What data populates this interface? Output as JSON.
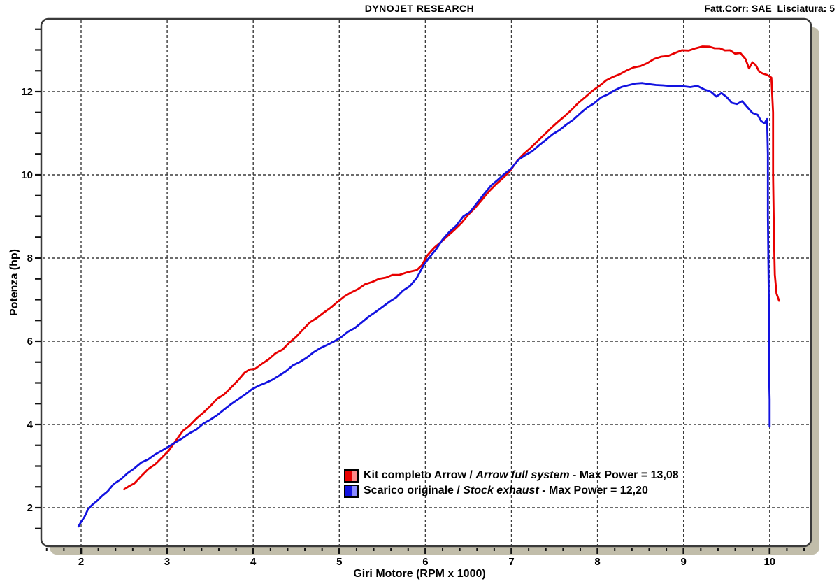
{
  "header": {
    "title": "DYNOJET RESEARCH",
    "correction": "Fatt.Corr: SAE  Lisciatura: 5"
  },
  "colors": {
    "background": "#ffffff",
    "frame": "#3a3a3a",
    "shadow": "#c1bdaa",
    "grid": "#3b3b3b",
    "tick": "#111111",
    "arrow_red": "#e80000",
    "stock_blue": "#1212e0"
  },
  "chart_data": {
    "type": "line",
    "title": "DYNOJET RESEARCH",
    "xlabel": "Giri Motore (RPM x 1000)",
    "ylabel": "Potenza (hp)",
    "xlim": [
      1.54,
      10.48
    ],
    "ylim": [
      1.07,
      13.77
    ],
    "x_major_ticks": [
      2,
      3,
      4,
      5,
      6,
      7,
      8,
      9,
      10
    ],
    "y_major_ticks": [
      2,
      4,
      6,
      8,
      10,
      12
    ],
    "x_minor_step": 0.2,
    "y_minor_step": 0.5,
    "grid": "dashed lines at major ticks only",
    "legend_position": "inside bottom-center",
    "series": [
      {
        "id": "arrow",
        "label_primary": "Kit completo Arrow",
        "separator": " / ",
        "label_secondary": "Arrow full system",
        "suffix": " - Max Power = 13,08",
        "max_power": "13,08",
        "color": "#e80000",
        "swatch_light": "#ff8a8a",
        "points": [
          [
            2.5,
            2.44
          ],
          [
            2.56,
            2.52
          ],
          [
            2.62,
            2.6
          ],
          [
            2.7,
            2.77
          ],
          [
            2.78,
            2.92
          ],
          [
            2.86,
            3.06
          ],
          [
            2.94,
            3.22
          ],
          [
            3.02,
            3.4
          ],
          [
            3.1,
            3.62
          ],
          [
            3.18,
            3.82
          ],
          [
            3.26,
            3.99
          ],
          [
            3.34,
            4.15
          ],
          [
            3.42,
            4.28
          ],
          [
            3.5,
            4.44
          ],
          [
            3.58,
            4.6
          ],
          [
            3.66,
            4.74
          ],
          [
            3.74,
            4.88
          ],
          [
            3.82,
            5.06
          ],
          [
            3.9,
            5.24
          ],
          [
            3.96,
            5.33
          ],
          [
            4.02,
            5.36
          ],
          [
            4.1,
            5.44
          ],
          [
            4.18,
            5.57
          ],
          [
            4.26,
            5.7
          ],
          [
            4.34,
            5.82
          ],
          [
            4.42,
            5.95
          ],
          [
            4.5,
            6.1
          ],
          [
            4.58,
            6.28
          ],
          [
            4.66,
            6.44
          ],
          [
            4.74,
            6.56
          ],
          [
            4.82,
            6.7
          ],
          [
            4.9,
            6.83
          ],
          [
            4.98,
            6.94
          ],
          [
            5.06,
            7.06
          ],
          [
            5.14,
            7.18
          ],
          [
            5.22,
            7.26
          ],
          [
            5.3,
            7.37
          ],
          [
            5.38,
            7.43
          ],
          [
            5.46,
            7.49
          ],
          [
            5.54,
            7.54
          ],
          [
            5.62,
            7.58
          ],
          [
            5.7,
            7.62
          ],
          [
            5.78,
            7.63
          ],
          [
            5.84,
            7.66
          ],
          [
            5.9,
            7.73
          ],
          [
            5.96,
            7.84
          ],
          [
            6.02,
            8.06
          ],
          [
            6.1,
            8.23
          ],
          [
            6.18,
            8.39
          ],
          [
            6.26,
            8.55
          ],
          [
            6.34,
            8.7
          ],
          [
            6.42,
            8.86
          ],
          [
            6.5,
            9.04
          ],
          [
            6.58,
            9.23
          ],
          [
            6.66,
            9.42
          ],
          [
            6.74,
            9.6
          ],
          [
            6.82,
            9.77
          ],
          [
            6.9,
            9.94
          ],
          [
            6.98,
            10.1
          ],
          [
            7.06,
            10.33
          ],
          [
            7.14,
            10.49
          ],
          [
            7.22,
            10.64
          ],
          [
            7.3,
            10.81
          ],
          [
            7.38,
            10.97
          ],
          [
            7.46,
            11.12
          ],
          [
            7.54,
            11.26
          ],
          [
            7.62,
            11.39
          ],
          [
            7.7,
            11.56
          ],
          [
            7.78,
            11.72
          ],
          [
            7.86,
            11.89
          ],
          [
            7.94,
            12.02
          ],
          [
            8.02,
            12.14
          ],
          [
            8.1,
            12.25
          ],
          [
            8.18,
            12.34
          ],
          [
            8.26,
            12.43
          ],
          [
            8.34,
            12.51
          ],
          [
            8.42,
            12.57
          ],
          [
            8.5,
            12.63
          ],
          [
            8.58,
            12.7
          ],
          [
            8.66,
            12.77
          ],
          [
            8.74,
            12.82
          ],
          [
            8.82,
            12.87
          ],
          [
            8.9,
            12.93
          ],
          [
            8.98,
            12.97
          ],
          [
            9.06,
            13.01
          ],
          [
            9.14,
            13.04
          ],
          [
            9.22,
            13.07
          ],
          [
            9.3,
            13.08
          ],
          [
            9.36,
            13.05
          ],
          [
            9.42,
            13.03
          ],
          [
            9.48,
            12.99
          ],
          [
            9.54,
            13.01
          ],
          [
            9.6,
            12.91
          ],
          [
            9.66,
            12.93
          ],
          [
            9.72,
            12.8
          ],
          [
            9.76,
            12.54
          ],
          [
            9.8,
            12.72
          ],
          [
            9.84,
            12.62
          ],
          [
            9.88,
            12.48
          ],
          [
            9.92,
            12.43
          ],
          [
            9.97,
            12.4
          ],
          [
            10.02,
            12.34
          ],
          [
            10.04,
            11.5
          ],
          [
            10.04,
            10.0
          ],
          [
            10.05,
            8.5
          ],
          [
            10.06,
            7.6
          ],
          [
            10.08,
            7.15
          ],
          [
            10.11,
            6.95
          ]
        ]
      },
      {
        "id": "stock",
        "label_primary": "Scarico originale",
        "separator": " / ",
        "label_secondary": "Stock exhaust",
        "suffix": " - Max Power = 12,20",
        "max_power": "12,20",
        "color": "#1212e0",
        "swatch_light": "#8a8aff",
        "points": [
          [
            1.97,
            1.55
          ],
          [
            2.0,
            1.66
          ],
          [
            2.04,
            1.8
          ],
          [
            2.08,
            1.94
          ],
          [
            2.13,
            2.05
          ],
          [
            2.18,
            2.15
          ],
          [
            2.24,
            2.28
          ],
          [
            2.31,
            2.42
          ],
          [
            2.38,
            2.55
          ],
          [
            2.46,
            2.7
          ],
          [
            2.54,
            2.84
          ],
          [
            2.62,
            2.96
          ],
          [
            2.7,
            3.07
          ],
          [
            2.78,
            3.18
          ],
          [
            2.86,
            3.28
          ],
          [
            2.94,
            3.38
          ],
          [
            3.02,
            3.46
          ],
          [
            3.1,
            3.56
          ],
          [
            3.18,
            3.68
          ],
          [
            3.26,
            3.79
          ],
          [
            3.34,
            3.9
          ],
          [
            3.42,
            4.01
          ],
          [
            3.5,
            4.12
          ],
          [
            3.58,
            4.24
          ],
          [
            3.66,
            4.37
          ],
          [
            3.74,
            4.49
          ],
          [
            3.82,
            4.61
          ],
          [
            3.9,
            4.72
          ],
          [
            3.98,
            4.82
          ],
          [
            4.06,
            4.91
          ],
          [
            4.14,
            5.0
          ],
          [
            4.22,
            5.08
          ],
          [
            4.3,
            5.18
          ],
          [
            4.38,
            5.28
          ],
          [
            4.46,
            5.4
          ],
          [
            4.54,
            5.5
          ],
          [
            4.62,
            5.61
          ],
          [
            4.7,
            5.72
          ],
          [
            4.78,
            5.84
          ],
          [
            4.86,
            5.93
          ],
          [
            4.94,
            6.01
          ],
          [
            5.02,
            6.1
          ],
          [
            5.1,
            6.22
          ],
          [
            5.18,
            6.33
          ],
          [
            5.26,
            6.45
          ],
          [
            5.34,
            6.57
          ],
          [
            5.42,
            6.7
          ],
          [
            5.5,
            6.82
          ],
          [
            5.58,
            6.94
          ],
          [
            5.66,
            7.06
          ],
          [
            5.74,
            7.2
          ],
          [
            5.82,
            7.34
          ],
          [
            5.9,
            7.54
          ],
          [
            5.98,
            7.82
          ],
          [
            6.04,
            8.0
          ],
          [
            6.12,
            8.22
          ],
          [
            6.2,
            8.42
          ],
          [
            6.28,
            8.62
          ],
          [
            6.36,
            8.8
          ],
          [
            6.44,
            8.98
          ],
          [
            6.52,
            9.12
          ],
          [
            6.6,
            9.33
          ],
          [
            6.68,
            9.52
          ],
          [
            6.76,
            9.72
          ],
          [
            6.84,
            9.86
          ],
          [
            6.92,
            10.02
          ],
          [
            7.0,
            10.17
          ],
          [
            7.08,
            10.34
          ],
          [
            7.16,
            10.46
          ],
          [
            7.24,
            10.58
          ],
          [
            7.32,
            10.7
          ],
          [
            7.4,
            10.83
          ],
          [
            7.48,
            10.96
          ],
          [
            7.56,
            11.08
          ],
          [
            7.64,
            11.2
          ],
          [
            7.72,
            11.34
          ],
          [
            7.8,
            11.49
          ],
          [
            7.88,
            11.6
          ],
          [
            7.96,
            11.74
          ],
          [
            8.04,
            11.85
          ],
          [
            8.12,
            11.94
          ],
          [
            8.2,
            12.03
          ],
          [
            8.28,
            12.1
          ],
          [
            8.36,
            12.15
          ],
          [
            8.44,
            12.19
          ],
          [
            8.52,
            12.2
          ],
          [
            8.6,
            12.16
          ],
          [
            8.68,
            12.14
          ],
          [
            8.76,
            12.17
          ],
          [
            8.84,
            12.15
          ],
          [
            8.92,
            12.13
          ],
          [
            9.0,
            12.12
          ],
          [
            9.08,
            12.1
          ],
          [
            9.16,
            12.13
          ],
          [
            9.24,
            12.06
          ],
          [
            9.32,
            11.98
          ],
          [
            9.38,
            11.86
          ],
          [
            9.44,
            11.95
          ],
          [
            9.5,
            11.89
          ],
          [
            9.56,
            11.73
          ],
          [
            9.62,
            11.69
          ],
          [
            9.68,
            11.78
          ],
          [
            9.74,
            11.62
          ],
          [
            9.8,
            11.5
          ],
          [
            9.86,
            11.42
          ],
          [
            9.9,
            11.3
          ],
          [
            9.94,
            11.24
          ],
          [
            9.97,
            11.32
          ],
          [
            9.98,
            10.5
          ],
          [
            9.98,
            9.0
          ],
          [
            9.99,
            7.0
          ],
          [
            9.99,
            5.5
          ],
          [
            10.0,
            4.6
          ],
          [
            10.0,
            3.95
          ]
        ]
      }
    ]
  }
}
